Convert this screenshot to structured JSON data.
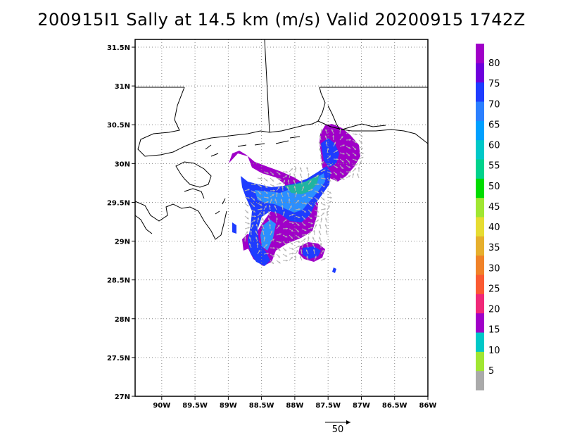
{
  "title": "200915I1 Sally at 14.5 km (m/s) Valid 20200915 1742Z",
  "map": {
    "lat_ticks": [
      "31.5N",
      "31N",
      "30.5N",
      "30N",
      "29.5N",
      "29N",
      "28.5N",
      "28N",
      "27.5N",
      "27N"
    ],
    "lon_ticks": [
      "90W",
      "89.5W",
      "89W",
      "88.5W",
      "88W",
      "87.5W",
      "87W",
      "86.5W",
      "86W"
    ],
    "lon_range": [
      -90.4,
      -86.0
    ],
    "lat_range": [
      27.0,
      31.6
    ],
    "grid": true
  },
  "colorbar": {
    "labels": [
      "5",
      "10",
      "15",
      "20",
      "25",
      "30",
      "35",
      "40",
      "45",
      "50",
      "55",
      "60",
      "65",
      "70",
      "75",
      "80"
    ],
    "colors": [
      "#a000c8",
      "#6e00dc",
      "#1e3cff",
      "#2b7fff",
      "#00a0ff",
      "#00c8c8",
      "#00d28c",
      "#00dc00",
      "#a0e632",
      "#e6dc32",
      "#e6af2d",
      "#f08228",
      "#fa5a32",
      "#f02878",
      "#a000c8",
      "#00c8c8",
      "#a0e632",
      "#aaaaaa"
    ]
  },
  "reference_vector": {
    "label": "50"
  },
  "colors": {
    "purple": "#a000c8",
    "violet": "#6e00dc",
    "blue": "#1e3cff",
    "lightblue": "#2b8fff",
    "cyan": "#00c8c8",
    "teal": "#20b4a0",
    "arrow": "#b4b4b4"
  }
}
